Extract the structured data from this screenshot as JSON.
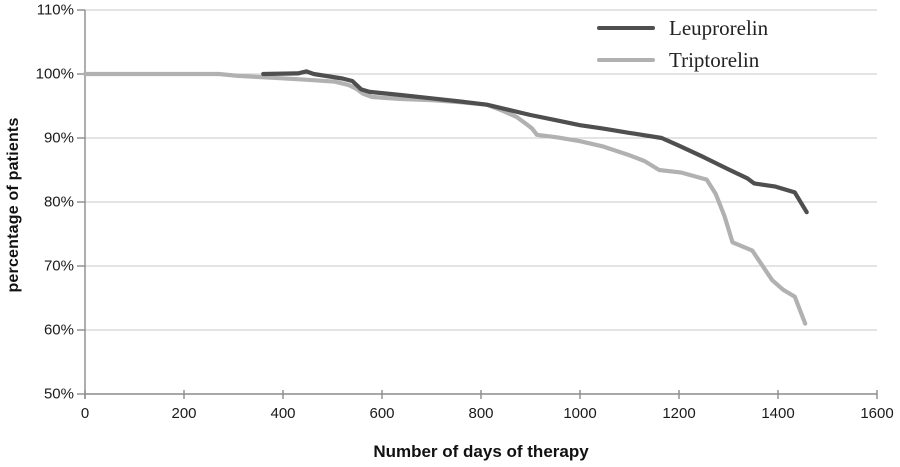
{
  "figure": {
    "background": "#ffffff"
  },
  "chart_data": {
    "type": "line",
    "title": "",
    "xlabel": "Number of days of therapy",
    "ylabel": "percentage of patients",
    "xlim": [
      0,
      1600
    ],
    "ylim": [
      50,
      110
    ],
    "x_ticks": [
      0,
      200,
      400,
      600,
      800,
      1000,
      1200,
      1400,
      1600
    ],
    "y_ticks": [
      {
        "value": 110,
        "label": "110%"
      },
      {
        "value": 100,
        "label": "100%"
      },
      {
        "value": 90,
        "label": "90%"
      },
      {
        "value": 80,
        "label": "80%"
      },
      {
        "value": 70,
        "label": "70%"
      },
      {
        "value": 60,
        "label": "60%"
      },
      {
        "value": 50,
        "label": "50%"
      }
    ],
    "grid": "horizontal",
    "legend_position": "top-right-inside",
    "colors": {
      "grid": "#c9c9c9",
      "axis": "#8c8c8c",
      "tick_label": "#1a1a1a"
    },
    "series": [
      {
        "name": "Leuprorelin",
        "color": "#4f4f4f",
        "points": [
          [
            360,
            100
          ],
          [
            430,
            100.1
          ],
          [
            447,
            100.4
          ],
          [
            462,
            100.0
          ],
          [
            520,
            99.3
          ],
          [
            540,
            98.9
          ],
          [
            558,
            97.6
          ],
          [
            575,
            97.2
          ],
          [
            640,
            96.7
          ],
          [
            700,
            96.2
          ],
          [
            758,
            95.7
          ],
          [
            812,
            95.2
          ],
          [
            850,
            94.5
          ],
          [
            900,
            93.6
          ],
          [
            950,
            92.8
          ],
          [
            1000,
            92.0
          ],
          [
            1045,
            91.5
          ],
          [
            1100,
            90.8
          ],
          [
            1165,
            90.0
          ],
          [
            1200,
            88.8
          ],
          [
            1250,
            87.0
          ],
          [
            1300,
            85.1
          ],
          [
            1338,
            83.7
          ],
          [
            1352,
            82.9
          ],
          [
            1395,
            82.4
          ],
          [
            1434,
            81.5
          ],
          [
            1458,
            78.4
          ]
        ]
      },
      {
        "name": "Triptorelin",
        "color": "#b1b1b1",
        "points": [
          [
            0,
            100
          ],
          [
            270,
            100
          ],
          [
            310,
            99.7
          ],
          [
            380,
            99.4
          ],
          [
            450,
            99.1
          ],
          [
            505,
            98.8
          ],
          [
            532,
            98.3
          ],
          [
            548,
            97.7
          ],
          [
            562,
            96.9
          ],
          [
            580,
            96.4
          ],
          [
            640,
            96.1
          ],
          [
            700,
            95.9
          ],
          [
            758,
            95.6
          ],
          [
            812,
            95.2
          ],
          [
            845,
            94.2
          ],
          [
            872,
            93.3
          ],
          [
            893,
            92.1
          ],
          [
            903,
            91.5
          ],
          [
            913,
            90.5
          ],
          [
            955,
            90.1
          ],
          [
            1000,
            89.5
          ],
          [
            1045,
            88.7
          ],
          [
            1100,
            87.3
          ],
          [
            1130,
            86.4
          ],
          [
            1160,
            85.0
          ],
          [
            1205,
            84.6
          ],
          [
            1256,
            83.5
          ],
          [
            1274,
            81.3
          ],
          [
            1292,
            77.8
          ],
          [
            1308,
            73.7
          ],
          [
            1348,
            72.4
          ],
          [
            1388,
            67.8
          ],
          [
            1410,
            66.3
          ],
          [
            1434,
            65.2
          ],
          [
            1455,
            61.0
          ]
        ]
      }
    ]
  }
}
